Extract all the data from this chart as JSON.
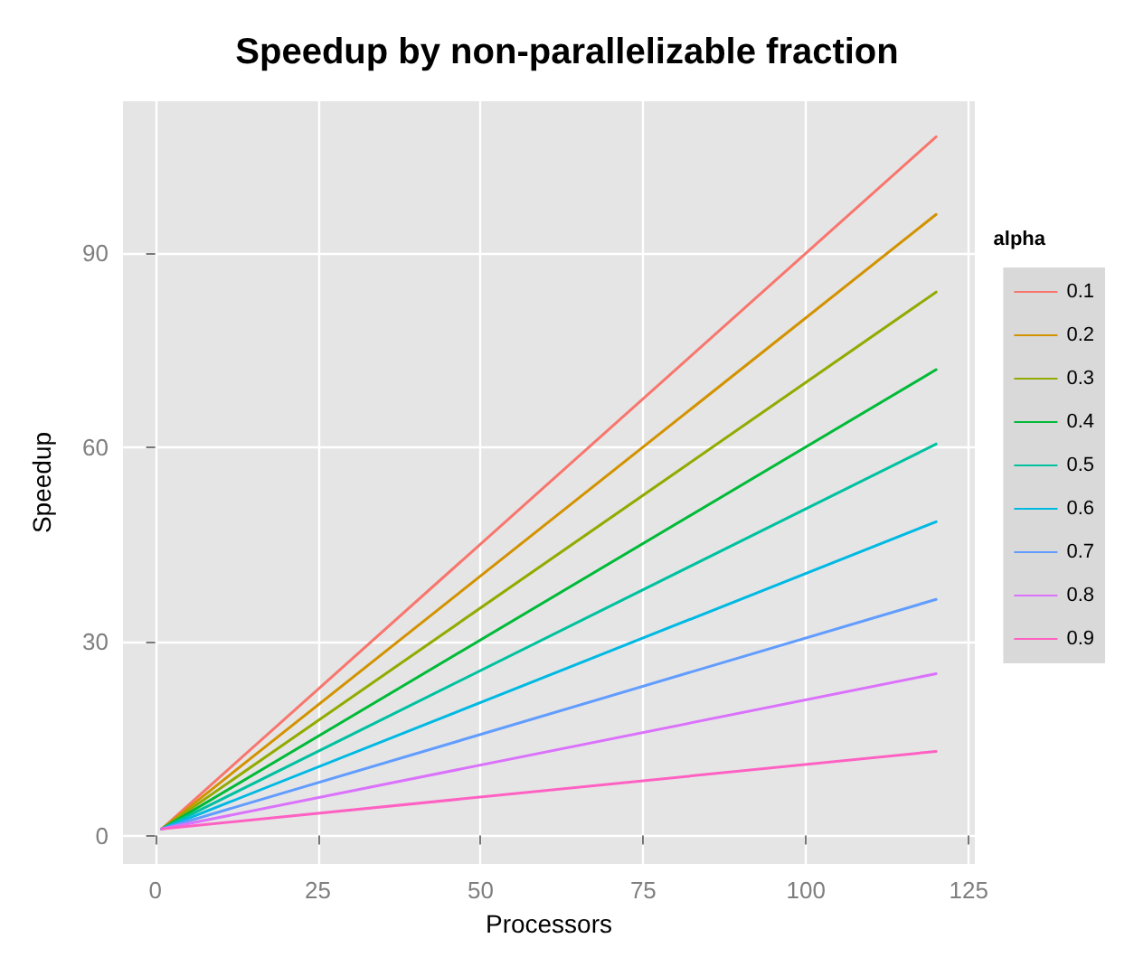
{
  "chart_data": {
    "type": "line",
    "title": "Speedup by non-parallelizable fraction",
    "xlabel": "Processors",
    "ylabel": "Speedup",
    "legend_title": "alpha",
    "x": [
      1,
      120
    ],
    "series": [
      {
        "name": "0.1",
        "color": "#f8766d",
        "values": [
          1,
          108
        ]
      },
      {
        "name": "0.2",
        "color": "#d39200",
        "values": [
          1,
          96
        ]
      },
      {
        "name": "0.3",
        "color": "#93aa00",
        "values": [
          1,
          84
        ]
      },
      {
        "name": "0.4",
        "color": "#00ba38",
        "values": [
          1,
          72
        ]
      },
      {
        "name": "0.5",
        "color": "#00c19f",
        "values": [
          1,
          60.5
        ]
      },
      {
        "name": "0.6",
        "color": "#00b9e3",
        "values": [
          1,
          48.5
        ]
      },
      {
        "name": "0.7",
        "color": "#619cff",
        "values": [
          1,
          36.5
        ]
      },
      {
        "name": "0.8",
        "color": "#db72fb",
        "values": [
          1,
          25
        ]
      },
      {
        "name": "0.9",
        "color": "#ff61c3",
        "values": [
          1,
          13
        ]
      }
    ],
    "xlim": [
      -4.95,
      125.95
    ],
    "xticks": [
      0,
      25,
      50,
      75,
      100,
      125
    ],
    "ylim": [
      -4.4,
      113.5
    ],
    "yticks": [
      0,
      30,
      60,
      90
    ],
    "grid": true,
    "legend": "right",
    "marker": "none",
    "line_style": "solid"
  }
}
